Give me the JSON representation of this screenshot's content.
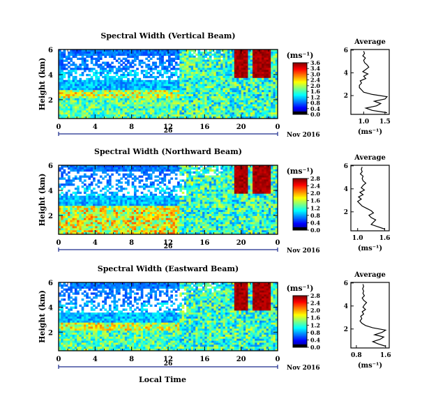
{
  "chart_data": [
    {
      "type": "heatmap",
      "title": "Spectral Width (Vertical Beam)",
      "ylabel": "Height (km)",
      "y_ticks": [
        "6",
        "4",
        "2"
      ],
      "x_ticks": [
        "0",
        "4",
        "8",
        "12",
        "16",
        "20",
        "0"
      ],
      "date_day": "26",
      "date_month": "Nov 2016",
      "ylim": [
        0.5,
        6
      ],
      "xlim": [
        0,
        24
      ],
      "colorbar": {
        "unit_label": "(ms⁻¹)",
        "ticks": [
          "3.6",
          "3.4",
          "3.0",
          "2.4",
          "2.0",
          "1.6",
          "1.2",
          "0.8",
          "0.4",
          "0.0"
        ],
        "max": 3.6
      },
      "average_profile": {
        "title": "Average",
        "xlabel": "(ms⁻¹)",
        "x_ticks": [
          "1.0",
          "1.5"
        ],
        "y_ticks": [
          "6",
          "4",
          "2"
        ],
        "xlim": [
          0.7,
          1.6
        ],
        "heights": [
          0.5,
          0.7,
          0.9,
          1.1,
          1.3,
          1.5,
          1.7,
          1.9,
          2.1,
          2.3,
          2.5,
          2.7,
          2.9,
          3.1,
          3.3,
          3.5,
          3.7,
          3.9,
          4.1,
          4.3,
          4.5,
          4.7,
          4.9,
          5.1,
          5.3,
          5.5,
          5.7,
          5.9
        ],
        "values": [
          1.55,
          1.2,
          1.05,
          1.3,
          1.4,
          1.25,
          1.5,
          1.55,
          1.2,
          1.0,
          0.95,
          0.9,
          0.9,
          0.95,
          0.92,
          1.05,
          1.0,
          1.1,
          0.98,
          1.05,
          1.12,
          1.08,
          1.02,
          1.0,
          1.04,
          0.98,
          1.02,
          1.0
        ]
      }
    },
    {
      "type": "heatmap",
      "title": "Spectral Width (Northward Beam)",
      "ylabel": "Height (km)",
      "y_ticks": [
        "6",
        "4",
        "2"
      ],
      "x_ticks": [
        "0",
        "4",
        "8",
        "12",
        "16",
        "20",
        "0"
      ],
      "date_day": "26",
      "date_month": "Nov 2016",
      "ylim": [
        0.5,
        6
      ],
      "xlim": [
        0,
        24
      ],
      "colorbar": {
        "unit_label": "(ms⁻¹)",
        "ticks": [
          "2.8",
          "2.4",
          "2.0",
          "1.6",
          "1.2",
          "0.8",
          "0.4",
          "0.0"
        ],
        "max": 2.8
      },
      "average_profile": {
        "title": "Average",
        "xlabel": "(ms⁻¹)",
        "x_ticks": [
          "1.0",
          "1.6"
        ],
        "y_ticks": [
          "6",
          "4",
          "2"
        ],
        "xlim": [
          0.85,
          1.7
        ],
        "heights": [
          0.5,
          0.7,
          0.9,
          1.1,
          1.3,
          1.5,
          1.7,
          1.9,
          2.1,
          2.3,
          2.5,
          2.7,
          2.9,
          3.1,
          3.3,
          3.5,
          3.7,
          3.9,
          4.1,
          4.3,
          4.5,
          4.7,
          4.9,
          5.1,
          5.3,
          5.5,
          5.7,
          5.9
        ],
        "values": [
          1.6,
          1.45,
          1.3,
          1.35,
          1.4,
          1.3,
          1.25,
          1.35,
          1.3,
          1.2,
          1.1,
          1.05,
          1.0,
          1.08,
          1.02,
          1.12,
          1.05,
          1.15,
          1.08,
          1.12,
          1.18,
          1.12,
          1.1,
          1.12,
          1.06,
          1.1,
          1.08,
          1.1
        ]
      }
    },
    {
      "type": "heatmap",
      "title": "Spectral Width (Eastward Beam)",
      "ylabel": "Height (km)",
      "y_ticks": [
        "6",
        "4",
        "2"
      ],
      "x_ticks": [
        "0",
        "4",
        "8",
        "12",
        "16",
        "20",
        "0"
      ],
      "date_day": "26",
      "date_month": "Nov 2016",
      "xlabel": "Local Time",
      "ylim": [
        0.5,
        6
      ],
      "xlim": [
        0,
        24
      ],
      "colorbar": {
        "unit_label": "(ms⁻¹)",
        "ticks": [
          "2.8",
          "2.4",
          "2.0",
          "1.6",
          "1.2",
          "0.8",
          "0.4",
          "0.0"
        ],
        "max": 2.8
      },
      "average_profile": {
        "title": "Average",
        "xlabel": "(ms⁻¹)",
        "x_ticks": [
          "0.8",
          "1.6"
        ],
        "y_ticks": [
          "6",
          "4",
          "2"
        ],
        "xlim": [
          0.65,
          1.7
        ],
        "heights": [
          0.5,
          0.7,
          0.9,
          1.1,
          1.3,
          1.5,
          1.7,
          1.9,
          2.1,
          2.3,
          2.5,
          2.7,
          2.9,
          3.1,
          3.3,
          3.5,
          3.7,
          3.9,
          4.1,
          4.3,
          4.5,
          4.7,
          4.9,
          5.1,
          5.3,
          5.5,
          5.7,
          5.9
        ],
        "values": [
          1.6,
          1.4,
          1.25,
          1.45,
          1.55,
          1.3,
          1.5,
          1.6,
          1.25,
          1.05,
          0.95,
          0.9,
          0.95,
          0.92,
          1.0,
          0.96,
          1.05,
          0.98,
          1.02,
          1.08,
          1.0,
          0.96,
          1.02,
          0.98,
          1.0,
          0.97,
          1.0,
          0.98
        ]
      }
    }
  ]
}
